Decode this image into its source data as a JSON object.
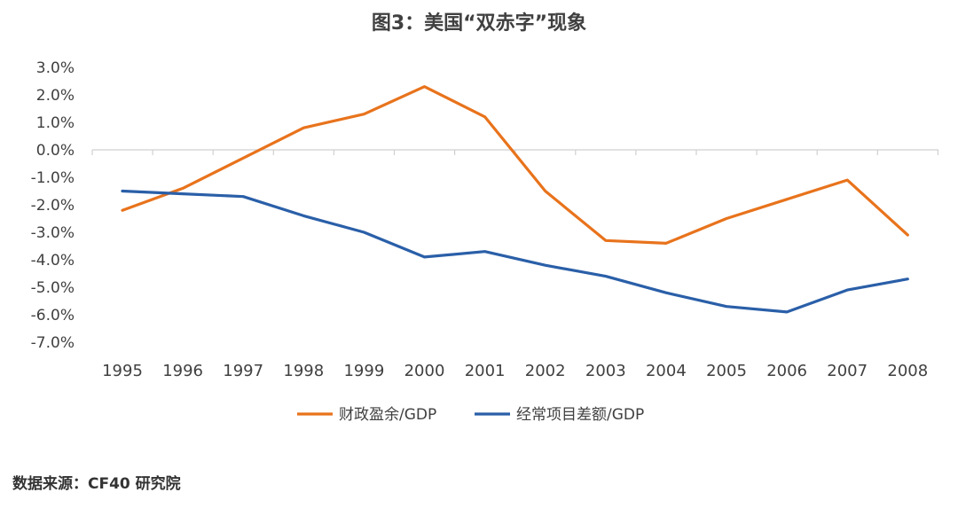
{
  "title": "图3：美国“双赤字”现象",
  "source": "数据来源：CF40 研究院",
  "chart_data": {
    "type": "line",
    "title": "图3：美国“双赤字”现象",
    "xlabel": "",
    "ylabel": "",
    "categories": [
      "1995",
      "1996",
      "1997",
      "1998",
      "1999",
      "2000",
      "2001",
      "2002",
      "2003",
      "2004",
      "2005",
      "2006",
      "2007",
      "2008"
    ],
    "y_ticks": [
      "3.0%",
      "2.0%",
      "1.0%",
      "0.0%",
      "-1.0%",
      "-2.0%",
      "-3.0%",
      "-4.0%",
      "-5.0%",
      "-6.0%",
      "-7.0%"
    ],
    "ylim": [
      -7.0,
      3.0
    ],
    "grid": false,
    "legend_position": "bottom",
    "series": [
      {
        "name": "财政盈余/GDP",
        "color": "#E8731C",
        "values": [
          -2.2,
          -1.4,
          -0.3,
          0.8,
          1.3,
          2.3,
          1.2,
          -1.5,
          -3.3,
          -3.4,
          -2.5,
          -1.8,
          -1.1,
          -3.1
        ]
      },
      {
        "name": "经常项目差额/GDP",
        "color": "#2A5FA8",
        "values": [
          -1.5,
          -1.6,
          -1.7,
          -2.4,
          -3.0,
          -3.9,
          -3.7,
          -4.2,
          -4.6,
          -5.2,
          -5.7,
          -5.9,
          -5.1,
          -4.7
        ]
      }
    ]
  }
}
